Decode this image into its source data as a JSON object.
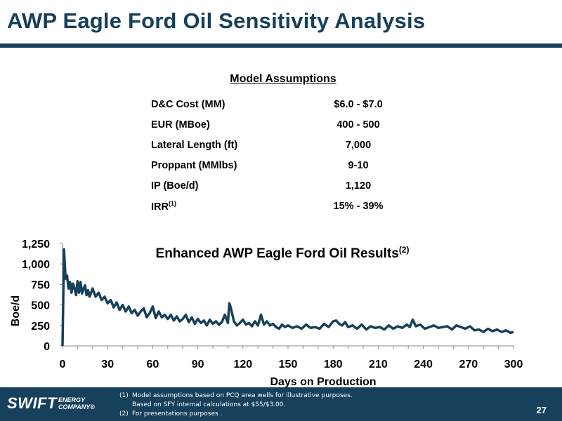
{
  "page": {
    "title": "AWP Eagle Ford Oil Sensitivity Analysis",
    "page_number": "27"
  },
  "assumptions": {
    "header": "Model Assumptions",
    "rows": [
      {
        "label": "D&C Cost (MM)",
        "value": "$6.0 - $7.0"
      },
      {
        "label": "EUR (MBoe)",
        "value": "400 - 500"
      },
      {
        "label": "Lateral Length (ft)",
        "value": "7,000"
      },
      {
        "label": "Proppant (MMlbs)",
        "value": "9-10"
      },
      {
        "label": "IP (Boe/d)",
        "value": "1,120"
      },
      {
        "label": "IRR",
        "sup": "(1)",
        "value": "15% - 39%"
      }
    ]
  },
  "footer": {
    "logo_text": "SWIFT",
    "logo_sub1": "ENERGY",
    "logo_sub2": "COMPANY®",
    "note1": "Model assumptions based on PCQ area wells for illustrative purposes.",
    "note1_num": "(1)",
    "note1b": "Based on SFY internal calculations at $55/$3.00.",
    "note2_num": "(2)",
    "note2": "For presentations purposes ."
  },
  "colors": {
    "brand": "#16405b",
    "line": "#16405b"
  },
  "chart_data": {
    "type": "line",
    "title": "Enhanced AWP Eagle Ford Oil Results",
    "title_sup": "(2)",
    "xlabel": "Days on Production",
    "ylabel": "Boe/d",
    "xlim": [
      0,
      300
    ],
    "ylim": [
      0,
      1250
    ],
    "xticks": [
      0,
      30,
      60,
      90,
      120,
      150,
      180,
      210,
      240,
      270,
      300
    ],
    "yticks": [
      0,
      250,
      500,
      750,
      1000,
      1250
    ],
    "ytick_labels": [
      "0",
      "250",
      "500",
      "750",
      "1,000",
      "1,250"
    ],
    "grid": false,
    "series": [
      {
        "x": [
          0,
          1,
          2,
          3,
          4,
          5,
          6,
          7,
          8,
          9,
          10,
          11,
          12,
          13,
          14,
          15,
          16,
          17,
          18,
          19,
          20,
          22,
          24,
          26,
          28,
          30,
          32,
          34,
          36,
          38,
          40,
          42,
          44,
          46,
          48,
          50,
          52,
          54,
          56,
          58,
          60,
          62,
          64,
          66,
          68,
          70,
          72,
          74,
          76,
          78,
          80,
          82,
          84,
          86,
          88,
          90,
          92,
          94,
          96,
          98,
          100,
          102,
          104,
          106,
          108,
          110,
          111,
          112,
          114,
          116,
          118,
          120,
          122,
          124,
          126,
          128,
          130,
          132,
          134,
          136,
          138,
          140,
          142,
          144,
          146,
          148,
          150,
          153,
          156,
          159,
          162,
          165,
          168,
          171,
          174,
          177,
          180,
          182,
          184,
          186,
          188,
          190,
          193,
          196,
          199,
          202,
          205,
          208,
          211,
          214,
          217,
          220,
          223,
          226,
          229,
          231,
          233,
          235,
          238,
          241,
          244,
          247,
          250,
          253,
          256,
          259,
          262,
          265,
          268,
          271,
          274,
          277,
          280,
          283,
          286,
          289,
          292,
          295,
          298,
          300
        ],
        "y": [
          0,
          1180,
          820,
          860,
          700,
          780,
          650,
          760,
          700,
          620,
          790,
          650,
          780,
          640,
          700,
          740,
          620,
          680,
          600,
          650,
          700,
          600,
          650,
          560,
          600,
          520,
          560,
          470,
          530,
          440,
          500,
          420,
          480,
          400,
          440,
          370,
          420,
          460,
          350,
          400,
          480,
          340,
          420,
          350,
          380,
          330,
          380,
          310,
          360,
          300,
          330,
          380,
          290,
          350,
          270,
          330,
          280,
          310,
          250,
          320,
          270,
          300,
          260,
          290,
          380,
          280,
          520,
          460,
          300,
          250,
          280,
          320,
          260,
          280,
          240,
          300,
          250,
          380,
          260,
          300,
          250,
          270,
          230,
          210,
          260,
          230,
          250,
          220,
          240,
          210,
          260,
          220,
          230,
          210,
          270,
          230,
          300,
          310,
          270,
          250,
          290,
          230,
          250,
          210,
          260,
          200,
          240,
          220,
          230,
          200,
          250,
          210,
          240,
          220,
          260,
          230,
          320,
          240,
          260,
          210,
          230,
          250,
          220,
          230,
          240,
          200,
          250,
          230,
          210,
          240,
          190,
          200,
          170,
          210,
          180,
          200,
          170,
          190,
          160,
          170
        ]
      }
    ]
  }
}
